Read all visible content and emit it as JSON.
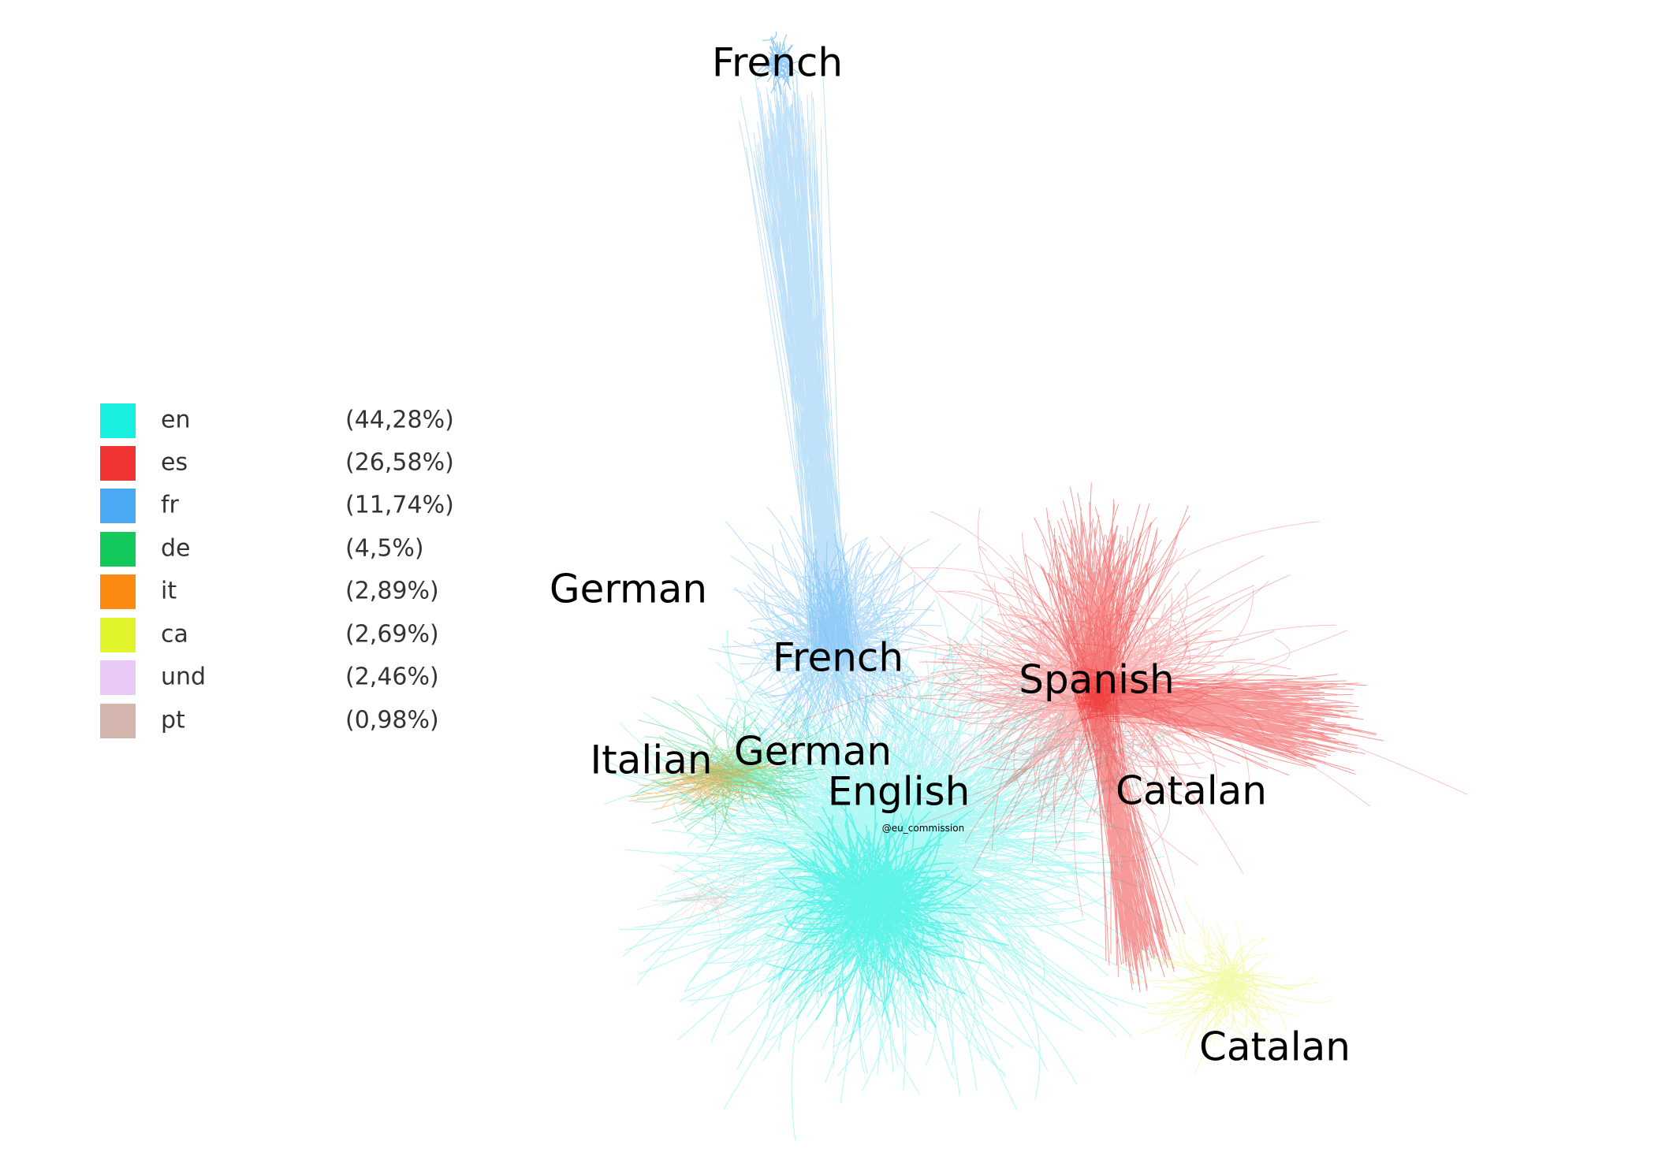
{
  "legend": [
    {
      "code": "en",
      "color": "#19efdf",
      "share": "(44,28%)"
    },
    {
      "code": "es",
      "color": "#f03434",
      "share": "(26,58%)"
    },
    {
      "code": "fr",
      "color": "#4aa9f2",
      "share": "(11,74%)"
    },
    {
      "code": "de",
      "color": "#14c95c",
      "share": "(4,5%)"
    },
    {
      "code": "it",
      "color": "#fb8a12",
      "share": "(2,89%)"
    },
    {
      "code": "ca",
      "color": "#e2f52c",
      "share": "(2,69%)"
    },
    {
      "code": "und",
      "color": "#e8c9f7",
      "share": "(2,46%)"
    },
    {
      "code": "pt",
      "color": "#d3b5ad",
      "share": "(0,98%)"
    }
  ],
  "labels": [
    "French",
    "German",
    "French",
    "Spanish",
    "Italian",
    "German",
    "English",
    "Catalan",
    "Catalan"
  ],
  "center_label": "@eu_commission"
}
